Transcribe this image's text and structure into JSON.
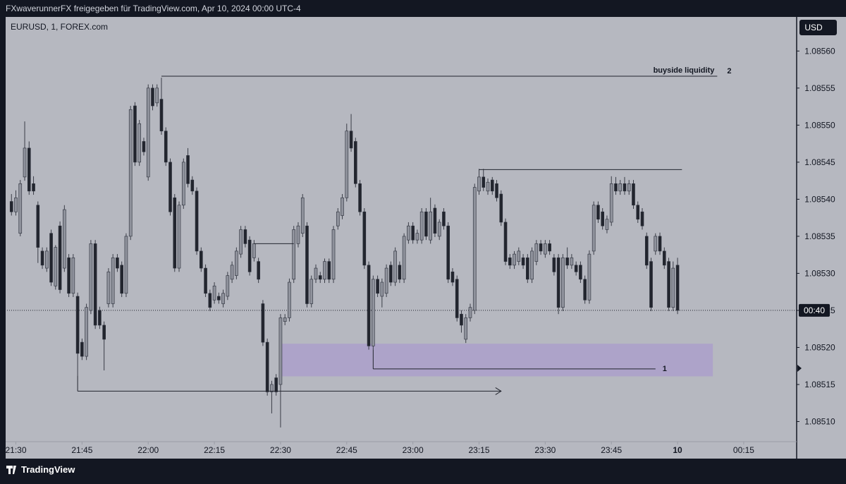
{
  "header": {
    "text": "FXwaverunnerFX freigegeben für TradingView.com, Apr 10, 2024 00:00 UTC-4"
  },
  "footer": {
    "brand": "TradingView"
  },
  "chart_data": {
    "type": "candlestick",
    "title": "EURUSD, 1, FOREX.com",
    "currency": "USD",
    "countdown": "00:40",
    "up_color": "#8f929c",
    "down_color": "#22252e",
    "xlim": [
      -1,
      178
    ],
    "xticks": [
      {
        "value": 1,
        "label": "21:30"
      },
      {
        "value": 16,
        "label": "21:45"
      },
      {
        "value": 31,
        "label": "22:00"
      },
      {
        "value": 46,
        "label": "22:15"
      },
      {
        "value": 61,
        "label": "22:30"
      },
      {
        "value": 76,
        "label": "22:45"
      },
      {
        "value": 91,
        "label": "23:00"
      },
      {
        "value": 106,
        "label": "23:15"
      },
      {
        "value": 121,
        "label": "23:30"
      },
      {
        "value": 136,
        "label": "23:45"
      },
      {
        "value": 151,
        "label": "10"
      },
      {
        "value": 166,
        "label": "00:15"
      }
    ],
    "ylim": [
      1.08505,
      1.085646
    ],
    "yticks": [
      {
        "value": 1.0851,
        "label": "1.08510"
      },
      {
        "value": 1.08515,
        "label": "1.08515"
      },
      {
        "value": 1.0852,
        "label": "1.08520"
      },
      {
        "value": 1.08525,
        "label": "1.08525"
      },
      {
        "value": 1.0853,
        "label": "1.08530"
      },
      {
        "value": 1.08535,
        "label": "1.08535"
      },
      {
        "value": 1.0854,
        "label": "1.08540"
      },
      {
        "value": 1.08545,
        "label": "1.08545"
      },
      {
        "value": 1.0855,
        "label": "1.08550"
      },
      {
        "value": 1.08555,
        "label": "1.08555"
      },
      {
        "value": 1.0856,
        "label": "1.08560"
      }
    ],
    "candles": [
      [
        1.085397,
        1.085407,
        1.085378,
        1.085383
      ],
      [
        1.085383,
        1.085412,
        1.085378,
        1.085402
      ],
      [
        1.085354,
        1.085426,
        1.08535,
        1.085421
      ],
      [
        1.08543,
        1.085505,
        1.085425,
        1.085469
      ],
      [
        1.085469,
        1.085478,
        1.085406,
        1.085411
      ],
      [
        1.085421,
        1.085431,
        1.085406,
        1.085411
      ],
      [
        1.085392,
        1.085397,
        1.085314,
        1.085335
      ],
      [
        1.08533,
        1.085335,
        1.085306,
        1.085311
      ],
      [
        1.085307,
        1.085335,
        1.085302,
        1.08533
      ],
      [
        1.085354,
        1.085359,
        1.085283,
        1.085288
      ],
      [
        1.085283,
        1.085338,
        1.085278,
        1.085335
      ],
      [
        1.085364,
        1.08537,
        1.085273,
        1.085278
      ],
      [
        1.085307,
        1.085392,
        1.085302,
        1.085386
      ],
      [
        1.085321,
        1.085326,
        1.085268,
        1.085273
      ],
      [
        1.085273,
        1.085326,
        1.085268,
        1.085321
      ],
      [
        1.085269,
        1.085274,
        1.085162,
        1.085192
      ],
      [
        1.085207,
        1.085212,
        1.085183,
        1.085188
      ],
      [
        1.085188,
        1.085259,
        1.085183,
        1.085254
      ],
      [
        1.08525,
        1.085345,
        1.085245,
        1.08534
      ],
      [
        1.08534,
        1.085345,
        1.085225,
        1.08523
      ],
      [
        1.08525,
        1.085255,
        1.085225,
        1.08523
      ],
      [
        1.08523,
        1.085235,
        1.085169,
        1.085211
      ],
      [
        1.085259,
        1.085307,
        1.085254,
        1.085302
      ],
      [
        1.085259,
        1.085326,
        1.085254,
        1.085321
      ],
      [
        1.085321,
        1.085326,
        1.085302,
        1.085307
      ],
      [
        1.085311,
        1.085316,
        1.085268,
        1.085273
      ],
      [
        1.085273,
        1.085354,
        1.085268,
        1.08535
      ],
      [
        1.08535,
        1.085526,
        1.085345,
        1.085521
      ],
      [
        1.085526,
        1.085531,
        1.085445,
        1.08545
      ],
      [
        1.08545,
        1.085507,
        1.085445,
        1.085502
      ],
      [
        1.085478,
        1.085483,
        1.085459,
        1.085464
      ],
      [
        1.08543,
        1.085555,
        1.085425,
        1.08555
      ],
      [
        1.08555,
        1.085555,
        1.08552,
        1.085526
      ],
      [
        1.08553,
        1.085555,
        1.085525,
        1.08555
      ],
      [
        1.085535,
        1.085564,
        1.085487,
        1.085492
      ],
      [
        1.085492,
        1.085497,
        1.085445,
        1.08545
      ],
      [
        1.08545,
        1.085455,
        1.085378,
        1.085383
      ],
      [
        1.085402,
        1.085407,
        1.085302,
        1.085307
      ],
      [
        1.085307,
        1.085397,
        1.085302,
        1.085392
      ],
      [
        1.085392,
        1.085455,
        1.085387,
        1.08545
      ],
      [
        1.085459,
        1.085469,
        1.085416,
        1.085421
      ],
      [
        1.085426,
        1.085431,
        1.085406,
        1.085411
      ],
      [
        1.085411,
        1.085416,
        1.085325,
        1.08533
      ],
      [
        1.08533,
        1.085335,
        1.085302,
        1.085307
      ],
      [
        1.085307,
        1.085312,
        1.085268,
        1.085273
      ],
      [
        1.085273,
        1.085278,
        1.085249,
        1.085254
      ],
      [
        1.085264,
        1.085288,
        1.085259,
        1.085283
      ],
      [
        1.085269,
        1.085274,
        1.085259,
        1.085264
      ],
      [
        1.085259,
        1.085278,
        1.085254,
        1.085273
      ],
      [
        1.085269,
        1.085302,
        1.085264,
        1.085297
      ],
      [
        1.085292,
        1.085316,
        1.085287,
        1.085311
      ],
      [
        1.085297,
        1.085335,
        1.085292,
        1.08533
      ],
      [
        1.085326,
        1.085364,
        1.085321,
        1.085359
      ],
      [
        1.085359,
        1.085364,
        1.085335,
        1.08534
      ],
      [
        1.085345,
        1.08535,
        1.085297,
        1.085302
      ],
      [
        1.085321,
        1.085345,
        1.085316,
        1.08534
      ],
      [
        1.085316,
        1.085321,
        1.085287,
        1.085292
      ],
      [
        1.085259,
        1.085264,
        1.085202,
        1.085207
      ],
      [
        1.085207,
        1.085212,
        1.085135,
        1.08514
      ],
      [
        1.08514,
        1.085155,
        1.085111,
        1.08515
      ],
      [
        1.085159,
        1.085164,
        1.085135,
        1.08514
      ],
      [
        1.08515,
        1.085245,
        1.085092,
        1.08524
      ],
      [
        1.085235,
        1.085245,
        1.08523,
        1.08524
      ],
      [
        1.08524,
        1.085293,
        1.085235,
        1.085288
      ],
      [
        1.085292,
        1.085364,
        1.085287,
        1.085359
      ],
      [
        1.08534,
        1.085369,
        1.085335,
        1.085364
      ],
      [
        1.085354,
        1.085407,
        1.085349,
        1.085402
      ],
      [
        1.085364,
        1.085369,
        1.085254,
        1.085259
      ],
      [
        1.085259,
        1.085297,
        1.085254,
        1.085292
      ],
      [
        1.085292,
        1.085312,
        1.085287,
        1.085307
      ],
      [
        1.085297,
        1.085302,
        1.085287,
        1.085292
      ],
      [
        1.085292,
        1.08532,
        1.085287,
        1.085316
      ],
      [
        1.085316,
        1.08532,
        1.085287,
        1.085292
      ],
      [
        1.085292,
        1.085364,
        1.085287,
        1.085359
      ],
      [
        1.085364,
        1.085388,
        1.085359,
        1.085383
      ],
      [
        1.085378,
        1.085407,
        1.085373,
        1.085402
      ],
      [
        1.085402,
        1.085502,
        1.085397,
        1.085492
      ],
      [
        1.085492,
        1.085515,
        1.085464,
        1.085469
      ],
      [
        1.085478,
        1.085483,
        1.085416,
        1.085421
      ],
      [
        1.085421,
        1.085426,
        1.085378,
        1.085383
      ],
      [
        1.085383,
        1.085388,
        1.085306,
        1.085311
      ],
      [
        1.085311,
        1.085316,
        1.085197,
        1.085202
      ],
      [
        1.085202,
        1.085297,
        1.085197,
        1.085292
      ],
      [
        1.085292,
        1.085297,
        1.085268,
        1.085273
      ],
      [
        1.085269,
        1.085293,
        1.085254,
        1.085288
      ],
      [
        1.085273,
        1.085312,
        1.085268,
        1.085307
      ],
      [
        1.085311,
        1.085316,
        1.085283,
        1.085288
      ],
      [
        1.085288,
        1.085335,
        1.085283,
        1.08533
      ],
      [
        1.085311,
        1.085316,
        1.085287,
        1.085292
      ],
      [
        1.085292,
        1.085354,
        1.085287,
        1.08535
      ],
      [
        1.085345,
        1.085369,
        1.08534,
        1.085364
      ],
      [
        1.085364,
        1.085369,
        1.08534,
        1.085345
      ],
      [
        1.085345,
        1.085359,
        1.08534,
        1.085354
      ],
      [
        1.085345,
        1.085388,
        1.08534,
        1.085383
      ],
      [
        1.085383,
        1.085388,
        1.085345,
        1.08535
      ],
      [
        1.085345,
        1.085402,
        1.08534,
        1.085383
      ],
      [
        1.085388,
        1.085393,
        1.085349,
        1.085354
      ],
      [
        1.08535,
        1.085373,
        1.085345,
        1.085369
      ],
      [
        1.085383,
        1.085388,
        1.085359,
        1.085364
      ],
      [
        1.085364,
        1.085369,
        1.085287,
        1.085292
      ],
      [
        1.085302,
        1.085307,
        1.085283,
        1.085288
      ],
      [
        1.085292,
        1.085297,
        1.085235,
        1.08524
      ],
      [
        1.085245,
        1.08525,
        1.08522,
        1.08523
      ],
      [
        1.085211,
        1.085245,
        1.085206,
        1.08524
      ],
      [
        1.08524,
        1.085259,
        1.085235,
        1.085254
      ],
      [
        1.08525,
        1.085421,
        1.085245,
        1.085416
      ],
      [
        1.085411,
        1.085441,
        1.085406,
        1.08543
      ],
      [
        1.08543,
        1.085441,
        1.085411,
        1.085416
      ],
      [
        1.085411,
        1.085428,
        1.085406,
        1.085423
      ],
      [
        1.085426,
        1.08543,
        1.085406,
        1.085411
      ],
      [
        1.085421,
        1.085426,
        1.085397,
        1.085402
      ],
      [
        1.085407,
        1.085412,
        1.085364,
        1.085369
      ],
      [
        1.085369,
        1.085374,
        1.085311,
        1.085316
      ],
      [
        1.085321,
        1.085326,
        1.085306,
        1.085311
      ],
      [
        1.085311,
        1.08533,
        1.085306,
        1.085326
      ],
      [
        1.085316,
        1.085335,
        1.085311,
        1.08533
      ],
      [
        1.085321,
        1.085326,
        1.085306,
        1.085311
      ],
      [
        1.085321,
        1.085326,
        1.085287,
        1.085292
      ],
      [
        1.085292,
        1.085335,
        1.085287,
        1.08533
      ],
      [
        1.085316,
        1.085345,
        1.085311,
        1.08534
      ],
      [
        1.08534,
        1.085345,
        1.085325,
        1.08533
      ],
      [
        1.085326,
        1.085345,
        1.085321,
        1.08534
      ],
      [
        1.08534,
        1.085345,
        1.085325,
        1.08533
      ],
      [
        1.085321,
        1.085326,
        1.085297,
        1.085302
      ],
      [
        1.085321,
        1.085326,
        1.085245,
        1.085254
      ],
      [
        1.085254,
        1.085326,
        1.085249,
        1.085321
      ],
      [
        1.085321,
        1.085335,
        1.085306,
        1.085311
      ],
      [
        1.085311,
        1.085326,
        1.085306,
        1.085321
      ],
      [
        1.085311,
        1.085316,
        1.085297,
        1.085302
      ],
      [
        1.085311,
        1.085316,
        1.085287,
        1.085292
      ],
      [
        1.085292,
        1.085297,
        1.085259,
        1.085264
      ],
      [
        1.085264,
        1.085331,
        1.085259,
        1.085326
      ],
      [
        1.08533,
        1.085397,
        1.085325,
        1.085392
      ],
      [
        1.085392,
        1.085397,
        1.085368,
        1.085373
      ],
      [
        1.085383,
        1.085388,
        1.085359,
        1.085364
      ],
      [
        1.085359,
        1.085378,
        1.085354,
        1.085373
      ],
      [
        1.085369,
        1.085431,
        1.085364,
        1.085421
      ],
      [
        1.085421,
        1.08543,
        1.085406,
        1.085411
      ],
      [
        1.085411,
        1.085426,
        1.085406,
        1.085421
      ],
      [
        1.085421,
        1.08543,
        1.085406,
        1.085411
      ],
      [
        1.085411,
        1.085426,
        1.085406,
        1.085421
      ],
      [
        1.085421,
        1.085426,
        1.085387,
        1.085392
      ],
      [
        1.085392,
        1.085397,
        1.085368,
        1.085373
      ],
      [
        1.085383,
        1.085388,
        1.085359,
        1.085364
      ],
      [
        1.08535,
        1.085355,
        1.085306,
        1.085311
      ],
      [
        1.085316,
        1.085321,
        1.085249,
        1.085254
      ],
      [
        1.08533,
        1.085354,
        1.085325,
        1.08535
      ],
      [
        1.08535,
        1.085355,
        1.085325,
        1.08533
      ],
      [
        1.08533,
        1.085335,
        1.085306,
        1.085311
      ],
      [
        1.085316,
        1.085321,
        1.085249,
        1.085254
      ],
      [
        1.085254,
        1.085316,
        1.085249,
        1.085307
      ],
      [
        1.085311,
        1.085321,
        1.085245,
        1.08525
      ]
    ],
    "annotations": {
      "lines": [
        {
          "level": 1.085566,
          "start": 34,
          "end": 160,
          "label": "buyside liquidity",
          "tag": "2"
        },
        {
          "level": 1.08544,
          "start": 106,
          "end": 152
        },
        {
          "level": 1.08534,
          "start": 55,
          "end": 64
        },
        {
          "level": 1.085141,
          "start": 15,
          "end": 111,
          "arrow": true
        },
        {
          "level": 1.085171,
          "start": 82,
          "end": 146,
          "tag": "1"
        }
      ],
      "zones": [
        {
          "from": 1.085161,
          "to": 1.085205,
          "start": 61,
          "end": 159,
          "color": "#a99ccc"
        }
      ]
    }
  }
}
